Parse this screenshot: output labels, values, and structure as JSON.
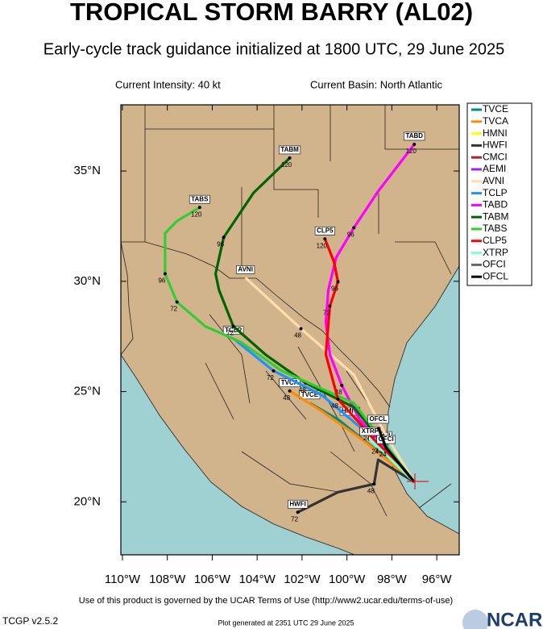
{
  "chart_data": {
    "type": "track-map",
    "title": "TROPICAL STORM BARRY (AL02)",
    "subtitle": "Early-cycle track guidance initialized at 1800 UTC, 29 June 2025",
    "intensity": "Current Intensity: 40 kt",
    "basin": "Current Basin: North Atlantic",
    "xlim": [
      -110.07,
      -95.0
    ],
    "ylim": [
      17.6,
      38.0
    ],
    "xticks": [
      {
        "value": -110,
        "label": "110°W"
      },
      {
        "value": -108,
        "label": "108°W"
      },
      {
        "value": -106,
        "label": "106°W"
      },
      {
        "value": -104,
        "label": "104°W"
      },
      {
        "value": -102,
        "label": "102°W"
      },
      {
        "value": -100,
        "label": "100°W"
      },
      {
        "value": -98,
        "label": "98°W"
      },
      {
        "value": -96,
        "label": "96°W"
      }
    ],
    "yticks": [
      {
        "value": 20,
        "label": "20°N"
      },
      {
        "value": 25,
        "label": "25°N"
      },
      {
        "value": 30,
        "label": "30°N"
      },
      {
        "value": 35,
        "label": "35°N"
      }
    ],
    "series": [
      {
        "name": "TVCE",
        "color": "#008b8b",
        "lon": [
          -97.0,
          -98.61,
          -100.4,
          -101.66
        ],
        "lat": [
          20.9,
          22.28,
          23.74,
          24.48
        ],
        "hours": [
          null,
          null,
          null,
          null
        ]
      },
      {
        "name": "TVCA",
        "color": "#ff8c00",
        "lon": [
          -97.0,
          -99.33,
          -101.12,
          -102.55
        ],
        "lat": [
          20.9,
          22.83,
          24.11,
          25.03
        ],
        "hours": [
          null,
          null,
          null,
          48
        ]
      },
      {
        "name": "HMNI",
        "color": "#ffff00",
        "lon": [
          -97.0,
          -98.97,
          -99.87
        ],
        "lat": [
          20.9,
          23.19,
          23.74
        ],
        "hours": [
          null,
          24,
          null
        ]
      },
      {
        "name": "HWFI",
        "color": "#333333",
        "lon": [
          -97.0,
          -98.61,
          -98.79,
          -100.4,
          -102.19
        ],
        "lat": [
          20.9,
          21.91,
          20.81,
          20.44,
          19.53
        ],
        "hours": [
          null,
          null,
          48,
          null,
          72
        ]
      },
      {
        "name": "CMCI",
        "color": "#b22222",
        "lon": [
          -97.0,
          -98.44
        ],
        "lat": [
          20.9,
          22.64
        ],
        "hours": [
          null,
          24
        ]
      },
      {
        "name": "AEMI",
        "color": "#a020f0",
        "lon": [
          -97.0,
          -97.9,
          -98.6
        ],
        "lat": [
          20.9,
          21.9,
          22.6
        ],
        "hours": [
          null,
          null,
          24
        ]
      },
      {
        "name": "AVNI",
        "color": "#ffdead",
        "lon": [
          -97.0,
          -98.26,
          -99.69,
          -102.05,
          -104.52
        ],
        "lat": [
          20.9,
          23.01,
          25.76,
          27.85,
          30.16
        ],
        "hours": [
          null,
          null,
          null,
          48,
          null
        ]
      },
      {
        "name": "TCLP",
        "color": "#1e90ff",
        "lon": [
          -97.0,
          -98.97,
          -101.12,
          -103.27,
          -105.06
        ],
        "lat": [
          20.9,
          23.01,
          24.84,
          25.94,
          27.41
        ],
        "hours": [
          null,
          null,
          null,
          72,
          null
        ]
      },
      {
        "name": "TABD",
        "color": "#ff00ff",
        "lon": [
          -97.0,
          -98.61,
          -99.44,
          -100.23,
          -100.76,
          -100.94,
          -100.83,
          -100.48,
          -99.69,
          -98.61,
          -97.0
        ],
        "lat": [
          20.9,
          22.83,
          23.74,
          25.28,
          26.68,
          28.14,
          29.61,
          31.08,
          32.43,
          34.08,
          36.21
        ],
        "hours": [
          null,
          null,
          null,
          48,
          null,
          null,
          null,
          null,
          96,
          null,
          120
        ]
      },
      {
        "name": "TABM",
        "color": "#006400",
        "lon": [
          -97.0,
          -99.69,
          -101.84,
          -103.63,
          -105.06,
          -105.7,
          -105.85,
          -105.49,
          -104.16,
          -102.55
        ],
        "lat": [
          20.9,
          24.29,
          25.39,
          26.68,
          27.96,
          29.61,
          30.34,
          31.99,
          34.01,
          35.59
        ],
        "hours": [
          null,
          null,
          48,
          null,
          72,
          null,
          null,
          96,
          null,
          120
        ]
      },
      {
        "name": "TABS",
        "color": "#32cd32",
        "lon": [
          -97.0,
          -99.69,
          -102.91,
          -104.7,
          -106.31,
          -107.57,
          -108.1,
          -108.1,
          -107.57,
          -106.56
        ],
        "lat": [
          20.9,
          24.48,
          25.94,
          27.23,
          27.96,
          29.06,
          30.34,
          32.18,
          32.73,
          33.35
        ],
        "hours": [
          null,
          null,
          null,
          null,
          null,
          72,
          96,
          null,
          null,
          120
        ]
      },
      {
        "name": "CLP5",
        "color": "#ff0000",
        "lon": [
          -97.0,
          -98.79,
          -100.4,
          -100.94,
          -100.76,
          -100.4,
          -100.58,
          -100.98
        ],
        "lat": [
          20.9,
          22.83,
          24.66,
          26.68,
          28.88,
          29.98,
          30.89,
          31.92
        ],
        "hours": [
          null,
          null,
          48,
          null,
          72,
          96,
          null,
          120
        ]
      },
      {
        "name": "XTRP",
        "color": "#7fffd4",
        "lon": [
          -97.0,
          -98.97
        ],
        "lat": [
          20.9,
          22.83
        ],
        "hours": [
          null,
          null
        ]
      },
      {
        "name": "OFCI",
        "color": "#666666",
        "lon": [
          -97.0,
          -98.26
        ],
        "lat": [
          20.9,
          22.46
        ],
        "hours": [
          null,
          24
        ]
      },
      {
        "name": "OFCL",
        "color": "#000000",
        "lon": [
          -97.0,
          -98.26,
          -98.61
        ],
        "lat": [
          20.9,
          22.46,
          23.38
        ],
        "hours": [
          null,
          24,
          null
        ]
      }
    ]
  },
  "footer": {
    "terms": "Use of this product is governed by the UCAR Terms of Use (http://www2.ucar.edu/terms-of-use)",
    "version": "TCGP v2.5.2",
    "generated": "Plot generated at 2351 UTC   29 June 2025",
    "logo": "NCAR"
  }
}
